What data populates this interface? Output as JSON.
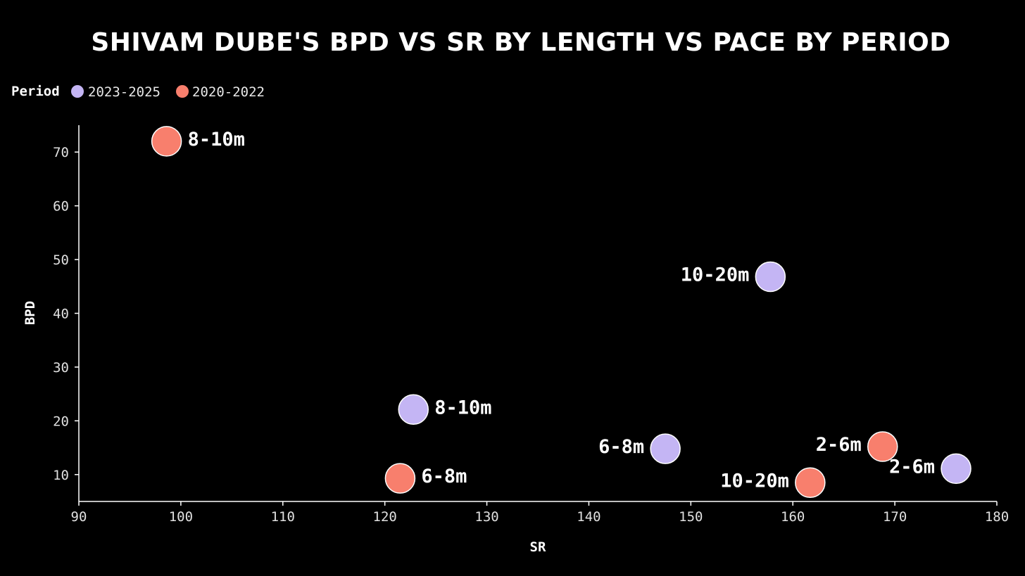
{
  "chart_data": {
    "type": "scatter",
    "title": "SHIVAM DUBE'S BPD VS SR BY LENGTH VS PACE BY PERIOD",
    "xlabel": "SR",
    "ylabel": "BPD",
    "xlim": [
      90,
      180
    ],
    "ylim": [
      5,
      75
    ],
    "xticks": [
      90,
      100,
      110,
      120,
      130,
      140,
      150,
      160,
      170,
      180
    ],
    "yticks": [
      10,
      20,
      30,
      40,
      50,
      60,
      70
    ],
    "legend": {
      "title": "Period",
      "placement": "top-left",
      "entries": [
        "2023-2025",
        "2020-2022"
      ]
    },
    "colors": {
      "2023-2025": "#c4b5f4",
      "2020-2022": "#f87f6d"
    },
    "series": [
      {
        "name": "2023-2025",
        "points": [
          {
            "label": "10-20m",
            "x": 157.8,
            "y": 46.8,
            "label_side": "left"
          },
          {
            "label": "8-10m",
            "x": 122.8,
            "y": 22.1,
            "label_side": "right"
          },
          {
            "label": "6-8m",
            "x": 147.5,
            "y": 14.8,
            "label_side": "left"
          },
          {
            "label": "2-6m",
            "x": 176.0,
            "y": 11.1,
            "label_side": "left"
          }
        ]
      },
      {
        "name": "2020-2022",
        "points": [
          {
            "label": "8-10m",
            "x": 98.6,
            "y": 72.0,
            "label_side": "right"
          },
          {
            "label": "6-8m",
            "x": 121.5,
            "y": 9.3,
            "label_side": "right"
          },
          {
            "label": "2-6m",
            "x": 168.8,
            "y": 15.2,
            "label_side": "left"
          },
          {
            "label": "10-20m",
            "x": 161.7,
            "y": 8.5,
            "label_side": "left"
          }
        ]
      }
    ]
  }
}
